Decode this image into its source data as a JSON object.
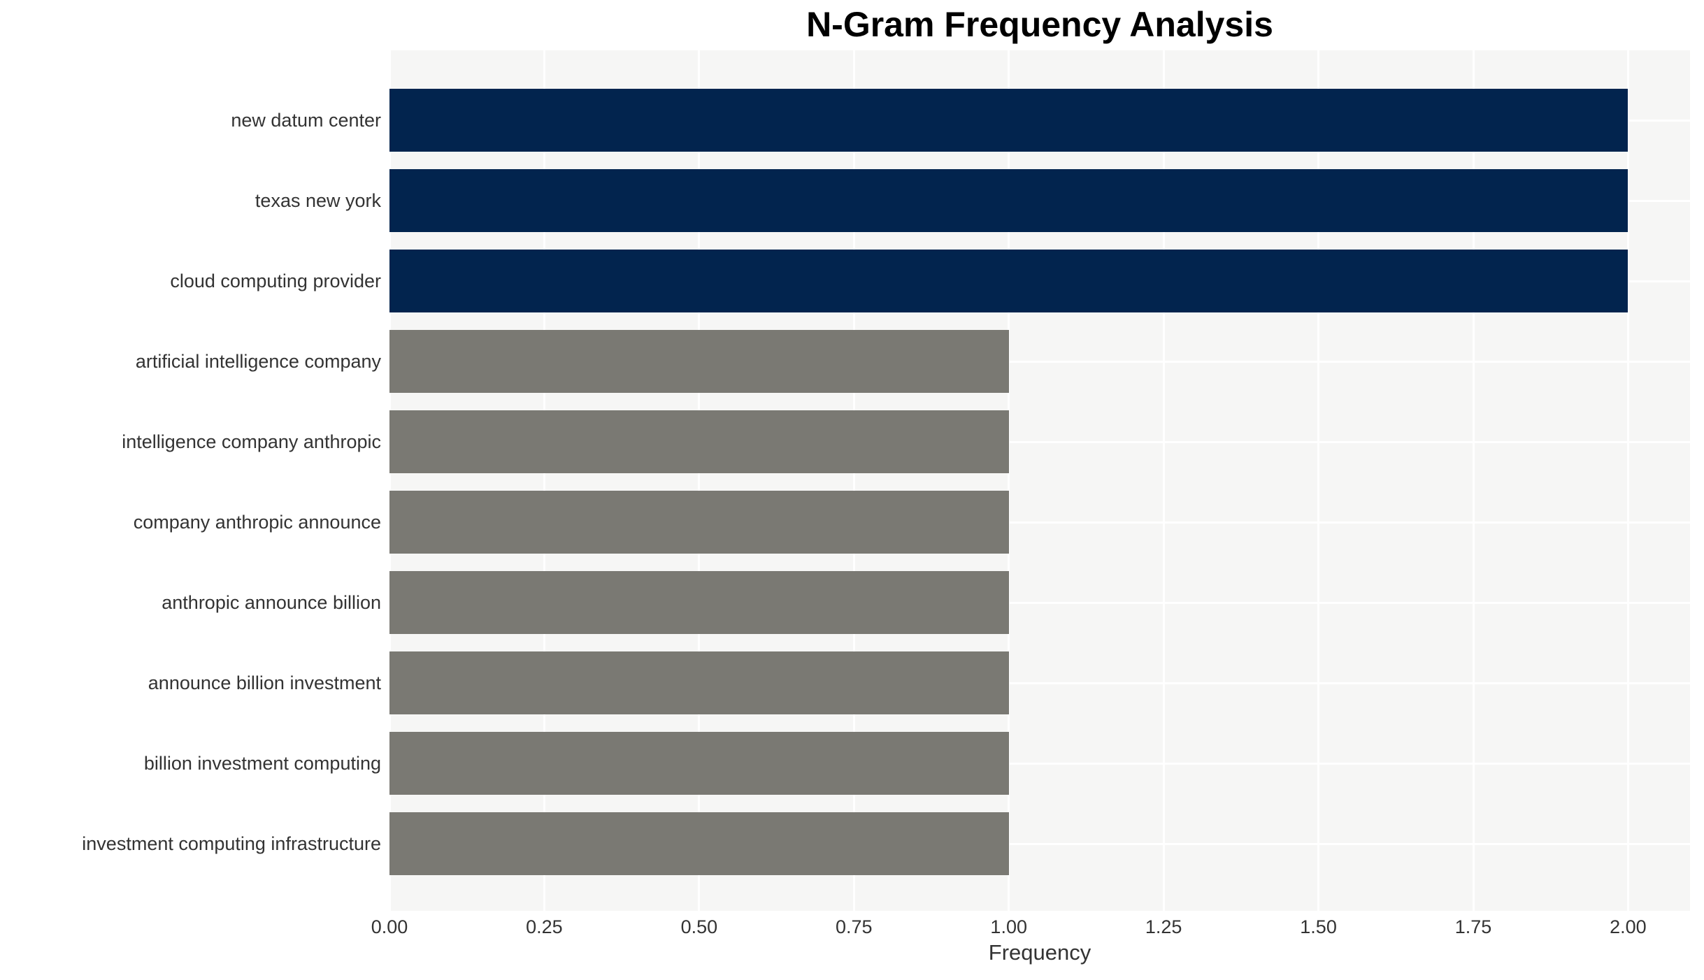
{
  "chart_data": {
    "type": "bar",
    "orientation": "horizontal",
    "title": "N-Gram Frequency Analysis",
    "xlabel": "Frequency",
    "ylabel": "",
    "categories": [
      "new datum center",
      "texas new york",
      "cloud computing provider",
      "artificial intelligence company",
      "intelligence company anthropic",
      "company anthropic announce",
      "anthropic announce billion",
      "announce billion investment",
      "billion investment computing",
      "investment computing infrastructure"
    ],
    "values": [
      2,
      2,
      2,
      1,
      1,
      1,
      1,
      1,
      1,
      1
    ],
    "bar_colors": [
      "#02244e",
      "#02244e",
      "#02244e",
      "#7a7973",
      "#7a7973",
      "#7a7973",
      "#7a7973",
      "#7a7973",
      "#7a7973",
      "#7a7973"
    ],
    "xticks": [
      "0.00",
      "0.25",
      "0.50",
      "0.75",
      "1.00",
      "1.25",
      "1.50",
      "1.75",
      "2.00"
    ],
    "xtick_values": [
      0,
      0.25,
      0.5,
      0.75,
      1.0,
      1.25,
      1.5,
      1.75,
      2.0
    ],
    "xlim": [
      0,
      2.1
    ],
    "grid": true,
    "legend": "none",
    "colors": {
      "highlight_bar": "#02244e",
      "default_bar": "#7a7973",
      "plot_background": "#f6f6f5",
      "gridline": "#ffffff",
      "tick_text": "#333333",
      "title_text": "#000000"
    }
  }
}
